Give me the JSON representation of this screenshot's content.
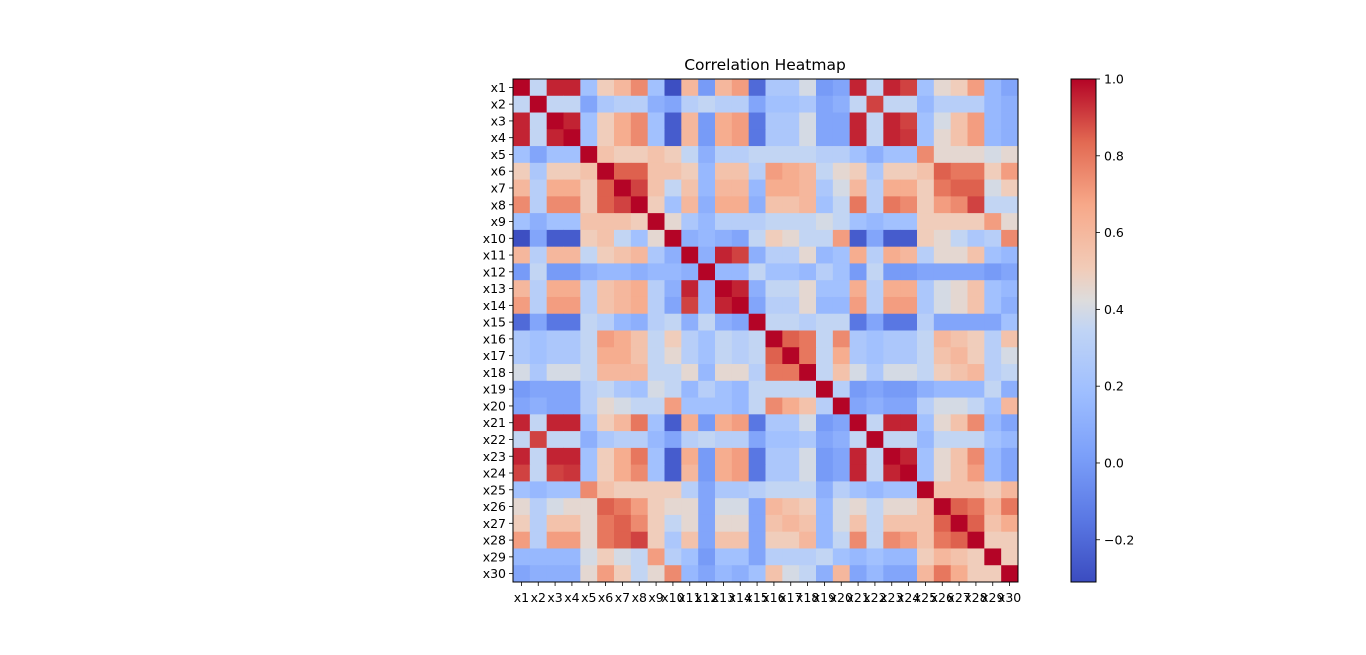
{
  "chart_data": {
    "type": "heatmap",
    "title": "Correlation Heatmap",
    "xlabel": "",
    "ylabel": "",
    "colormap": "coolwarm",
    "colorbar": {
      "min": -0.31,
      "max": 1.0,
      "ticks": [
        -0.2,
        0.0,
        0.2,
        0.4,
        0.6,
        0.8,
        1.0
      ],
      "tick_labels": [
        "−0.2",
        "0.0",
        "0.2",
        "0.4",
        "0.6",
        "0.8",
        "1.0"
      ]
    },
    "row_labels": [
      "x1",
      "x2",
      "x3",
      "x4",
      "x5",
      "x6",
      "x7",
      "x8",
      "x9",
      "x10",
      "x11",
      "x12",
      "x13",
      "x14",
      "x15",
      "x16",
      "x17",
      "x18",
      "x19",
      "x20",
      "x21",
      "x22",
      "x23",
      "x24",
      "x25",
      "x26",
      "x27",
      "x28",
      "x29",
      "x30"
    ],
    "col_labels": [
      "x1",
      "x2",
      "x3",
      "x4",
      "x5",
      "x6",
      "x7",
      "x8",
      "x9",
      "x10",
      "x11",
      "x12",
      "x13",
      "x14",
      "x15",
      "x16",
      "x17",
      "x18",
      "x19",
      "x20",
      "x21",
      "x22",
      "x23",
      "x24",
      "x25",
      "x26",
      "x27",
      "x28",
      "x29",
      "x30"
    ],
    "matrix": [
      [
        1.0,
        0.35,
        0.95,
        0.95,
        0.2,
        0.5,
        0.6,
        0.75,
        0.2,
        -0.3,
        0.6,
        0.0,
        0.6,
        0.7,
        -0.2,
        0.25,
        0.25,
        0.4,
        0.0,
        0.05,
        0.95,
        0.35,
        0.95,
        0.9,
        0.2,
        0.45,
        0.5,
        0.7,
        0.15,
        0.05
      ],
      [
        0.35,
        1.0,
        0.35,
        0.35,
        0.05,
        0.25,
        0.3,
        0.3,
        0.1,
        0.05,
        0.3,
        0.35,
        0.3,
        0.3,
        0.05,
        0.2,
        0.2,
        0.25,
        0.05,
        0.1,
        0.35,
        0.9,
        0.35,
        0.35,
        0.15,
        0.3,
        0.3,
        0.3,
        0.15,
        0.1
      ],
      [
        0.95,
        0.35,
        1.0,
        0.95,
        0.2,
        0.5,
        0.65,
        0.75,
        0.2,
        -0.25,
        0.6,
        0.0,
        0.65,
        0.7,
        -0.15,
        0.25,
        0.25,
        0.4,
        0.05,
        0.05,
        0.95,
        0.35,
        0.95,
        0.9,
        0.2,
        0.4,
        0.55,
        0.7,
        0.15,
        0.1
      ],
      [
        0.95,
        0.35,
        0.95,
        1.0,
        0.2,
        0.5,
        0.65,
        0.75,
        0.2,
        -0.25,
        0.6,
        0.0,
        0.65,
        0.7,
        -0.15,
        0.25,
        0.25,
        0.4,
        0.05,
        0.05,
        0.95,
        0.35,
        0.95,
        0.92,
        0.2,
        0.45,
        0.55,
        0.7,
        0.15,
        0.1
      ],
      [
        0.2,
        0.05,
        0.2,
        0.2,
        1.0,
        0.55,
        0.5,
        0.5,
        0.55,
        0.5,
        0.35,
        0.1,
        0.3,
        0.3,
        0.35,
        0.35,
        0.35,
        0.35,
        0.3,
        0.3,
        0.2,
        0.1,
        0.2,
        0.2,
        0.75,
        0.45,
        0.45,
        0.45,
        0.4,
        0.45
      ],
      [
        0.5,
        0.25,
        0.5,
        0.5,
        0.55,
        1.0,
        0.85,
        0.85,
        0.55,
        0.55,
        0.5,
        0.15,
        0.55,
        0.55,
        0.3,
        0.7,
        0.65,
        0.6,
        0.35,
        0.45,
        0.5,
        0.25,
        0.5,
        0.5,
        0.55,
        0.85,
        0.8,
        0.8,
        0.5,
        0.7
      ],
      [
        0.6,
        0.3,
        0.65,
        0.65,
        0.5,
        0.85,
        1.0,
        0.9,
        0.55,
        0.35,
        0.55,
        0.15,
        0.6,
        0.6,
        0.15,
        0.65,
        0.65,
        0.6,
        0.25,
        0.4,
        0.6,
        0.3,
        0.65,
        0.65,
        0.5,
        0.8,
        0.85,
        0.85,
        0.4,
        0.5
      ],
      [
        0.75,
        0.3,
        0.75,
        0.75,
        0.5,
        0.85,
        0.9,
        1.0,
        0.5,
        0.2,
        0.6,
        0.1,
        0.65,
        0.65,
        0.1,
        0.55,
        0.55,
        0.6,
        0.2,
        0.35,
        0.8,
        0.3,
        0.8,
        0.75,
        0.5,
        0.7,
        0.75,
        0.9,
        0.35,
        0.35
      ],
      [
        0.2,
        0.1,
        0.2,
        0.2,
        0.55,
        0.55,
        0.55,
        0.5,
        1.0,
        0.45,
        0.25,
        0.15,
        0.3,
        0.3,
        0.3,
        0.35,
        0.35,
        0.35,
        0.4,
        0.35,
        0.2,
        0.15,
        0.2,
        0.2,
        0.5,
        0.5,
        0.5,
        0.5,
        0.7,
        0.45
      ],
      [
        -0.3,
        0.05,
        -0.25,
        -0.25,
        0.5,
        0.55,
        0.35,
        0.2,
        0.45,
        1.0,
        0.1,
        0.15,
        0.1,
        0.05,
        0.35,
        0.5,
        0.45,
        0.35,
        0.35,
        0.7,
        -0.25,
        0.05,
        -0.25,
        -0.25,
        0.5,
        0.45,
        0.35,
        0.25,
        0.3,
        0.75
      ],
      [
        0.6,
        0.3,
        0.6,
        0.6,
        0.35,
        0.5,
        0.55,
        0.6,
        0.25,
        0.1,
        1.0,
        0.1,
        0.95,
        0.9,
        0.1,
        0.3,
        0.3,
        0.45,
        0.15,
        0.2,
        0.65,
        0.3,
        0.65,
        0.6,
        0.3,
        0.45,
        0.45,
        0.55,
        0.2,
        0.15
      ],
      [
        0.0,
        0.35,
        0.0,
        0.0,
        0.1,
        0.15,
        0.15,
        0.1,
        0.15,
        0.15,
        0.1,
        1.0,
        0.15,
        0.15,
        0.35,
        0.2,
        0.2,
        0.15,
        0.3,
        0.2,
        0.0,
        0.35,
        0.0,
        0.0,
        0.05,
        0.05,
        0.05,
        0.05,
        0.0,
        0.05
      ],
      [
        0.6,
        0.3,
        0.65,
        0.65,
        0.3,
        0.55,
        0.6,
        0.65,
        0.3,
        0.1,
        0.95,
        0.15,
        1.0,
        0.95,
        0.1,
        0.35,
        0.35,
        0.45,
        0.2,
        0.2,
        0.65,
        0.3,
        0.65,
        0.65,
        0.25,
        0.4,
        0.45,
        0.55,
        0.2,
        0.15
      ],
      [
        0.7,
        0.3,
        0.7,
        0.7,
        0.3,
        0.55,
        0.6,
        0.65,
        0.3,
        0.05,
        0.9,
        0.15,
        0.95,
        1.0,
        0.05,
        0.3,
        0.3,
        0.45,
        0.15,
        0.15,
        0.7,
        0.3,
        0.7,
        0.7,
        0.25,
        0.4,
        0.45,
        0.55,
        0.2,
        0.1
      ],
      [
        -0.2,
        0.05,
        -0.15,
        -0.15,
        0.35,
        0.3,
        0.15,
        0.1,
        0.3,
        0.35,
        0.1,
        0.35,
        0.1,
        0.05,
        1.0,
        0.35,
        0.35,
        0.3,
        0.35,
        0.35,
        -0.15,
        0.05,
        -0.15,
        -0.15,
        0.3,
        0.05,
        0.05,
        0.05,
        0.05,
        0.2
      ],
      [
        0.25,
        0.2,
        0.25,
        0.25,
        0.35,
        0.7,
        0.65,
        0.55,
        0.35,
        0.5,
        0.3,
        0.2,
        0.35,
        0.3,
        0.35,
        1.0,
        0.85,
        0.8,
        0.35,
        0.75,
        0.25,
        0.2,
        0.25,
        0.25,
        0.35,
        0.6,
        0.55,
        0.5,
        0.3,
        0.55
      ],
      [
        0.25,
        0.2,
        0.25,
        0.25,
        0.35,
        0.65,
        0.65,
        0.55,
        0.35,
        0.45,
        0.3,
        0.2,
        0.35,
        0.3,
        0.35,
        0.85,
        1.0,
        0.8,
        0.35,
        0.65,
        0.25,
        0.2,
        0.25,
        0.25,
        0.35,
        0.55,
        0.6,
        0.5,
        0.3,
        0.4
      ],
      [
        0.4,
        0.25,
        0.4,
        0.4,
        0.35,
        0.6,
        0.6,
        0.6,
        0.35,
        0.35,
        0.45,
        0.15,
        0.45,
        0.45,
        0.3,
        0.8,
        0.8,
        1.0,
        0.35,
        0.55,
        0.4,
        0.25,
        0.4,
        0.4,
        0.35,
        0.5,
        0.55,
        0.6,
        0.3,
        0.35
      ],
      [
        0.0,
        0.05,
        0.05,
        0.05,
        0.3,
        0.35,
        0.25,
        0.2,
        0.4,
        0.35,
        0.15,
        0.3,
        0.2,
        0.15,
        0.35,
        0.35,
        0.35,
        0.35,
        1.0,
        0.3,
        0.0,
        0.05,
        0.0,
        0.0,
        0.1,
        0.15,
        0.15,
        0.15,
        0.35,
        0.1
      ],
      [
        0.05,
        0.1,
        0.05,
        0.05,
        0.3,
        0.45,
        0.4,
        0.35,
        0.35,
        0.7,
        0.2,
        0.2,
        0.2,
        0.15,
        0.35,
        0.75,
        0.65,
        0.55,
        0.3,
        1.0,
        0.05,
        0.1,
        0.05,
        0.05,
        0.3,
        0.4,
        0.4,
        0.35,
        0.2,
        0.6
      ],
      [
        0.95,
        0.35,
        0.95,
        0.95,
        0.2,
        0.5,
        0.6,
        0.8,
        0.2,
        -0.25,
        0.65,
        0.0,
        0.65,
        0.7,
        -0.15,
        0.25,
        0.25,
        0.4,
        0.0,
        0.05,
        1.0,
        0.35,
        0.95,
        0.95,
        0.2,
        0.45,
        0.55,
        0.75,
        0.15,
        0.05
      ],
      [
        0.35,
        0.9,
        0.35,
        0.35,
        0.1,
        0.25,
        0.3,
        0.3,
        0.15,
        0.05,
        0.3,
        0.35,
        0.3,
        0.3,
        0.05,
        0.2,
        0.2,
        0.25,
        0.05,
        0.1,
        0.35,
        1.0,
        0.35,
        0.35,
        0.15,
        0.35,
        0.35,
        0.35,
        0.2,
        0.15
      ],
      [
        0.95,
        0.35,
        0.95,
        0.95,
        0.2,
        0.5,
        0.65,
        0.8,
        0.2,
        -0.25,
        0.65,
        0.0,
        0.65,
        0.7,
        -0.15,
        0.25,
        0.25,
        0.4,
        0.0,
        0.05,
        0.95,
        0.35,
        1.0,
        0.95,
        0.2,
        0.45,
        0.55,
        0.75,
        0.15,
        0.05
      ],
      [
        0.9,
        0.35,
        0.9,
        0.92,
        0.2,
        0.5,
        0.65,
        0.75,
        0.2,
        -0.25,
        0.6,
        0.0,
        0.65,
        0.7,
        -0.15,
        0.25,
        0.25,
        0.4,
        0.0,
        0.05,
        0.95,
        0.35,
        0.95,
        1.0,
        0.2,
        0.45,
        0.55,
        0.7,
        0.15,
        0.05
      ],
      [
        0.2,
        0.15,
        0.2,
        0.2,
        0.75,
        0.55,
        0.5,
        0.5,
        0.5,
        0.5,
        0.3,
        0.05,
        0.25,
        0.25,
        0.3,
        0.35,
        0.35,
        0.35,
        0.1,
        0.3,
        0.2,
        0.15,
        0.2,
        0.2,
        1.0,
        0.55,
        0.55,
        0.55,
        0.5,
        0.6
      ],
      [
        0.45,
        0.3,
        0.4,
        0.45,
        0.45,
        0.85,
        0.8,
        0.7,
        0.5,
        0.45,
        0.45,
        0.05,
        0.4,
        0.4,
        0.05,
        0.6,
        0.55,
        0.5,
        0.15,
        0.4,
        0.45,
        0.35,
        0.45,
        0.45,
        0.55,
        1.0,
        0.85,
        0.8,
        0.6,
        0.8
      ],
      [
        0.5,
        0.3,
        0.55,
        0.55,
        0.45,
        0.8,
        0.85,
        0.75,
        0.5,
        0.35,
        0.45,
        0.05,
        0.45,
        0.45,
        0.05,
        0.55,
        0.6,
        0.55,
        0.15,
        0.4,
        0.55,
        0.35,
        0.55,
        0.55,
        0.55,
        0.85,
        1.0,
        0.85,
        0.55,
        0.65
      ],
      [
        0.7,
        0.3,
        0.7,
        0.7,
        0.45,
        0.8,
        0.85,
        0.9,
        0.5,
        0.25,
        0.55,
        0.05,
        0.55,
        0.55,
        0.05,
        0.5,
        0.5,
        0.6,
        0.15,
        0.35,
        0.75,
        0.35,
        0.75,
        0.7,
        0.55,
        0.8,
        0.85,
        1.0,
        0.5,
        0.5
      ],
      [
        0.15,
        0.15,
        0.15,
        0.15,
        0.4,
        0.5,
        0.4,
        0.35,
        0.7,
        0.3,
        0.2,
        0.0,
        0.2,
        0.2,
        0.05,
        0.3,
        0.3,
        0.3,
        0.35,
        0.2,
        0.15,
        0.2,
        0.15,
        0.15,
        0.5,
        0.6,
        0.55,
        0.5,
        1.0,
        0.5
      ],
      [
        0.05,
        0.1,
        0.1,
        0.1,
        0.45,
        0.7,
        0.5,
        0.35,
        0.45,
        0.75,
        0.15,
        0.05,
        0.15,
        0.1,
        0.2,
        0.55,
        0.4,
        0.35,
        0.1,
        0.6,
        0.05,
        0.15,
        0.05,
        0.05,
        0.6,
        0.8,
        0.65,
        0.5,
        0.5,
        1.0
      ]
    ]
  }
}
